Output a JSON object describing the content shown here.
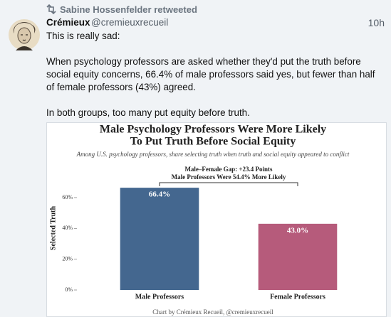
{
  "tweet": {
    "retweeted_by": "Sabine Hossenfelder retweeted",
    "author_name": "Crémieux",
    "author_handle": "@cremieuxrecueil",
    "time": "10h",
    "paragraphs": [
      [
        "This is really sad:"
      ],
      [
        "When psychology professors are asked whether they'd put the truth before",
        "social equity concerns, 66.4% of male professors said yes, but fewer than half",
        "of female professors (43%) agreed."
      ],
      [
        "In both groups, too many put equity before truth."
      ]
    ]
  },
  "chart_data": {
    "type": "bar",
    "title": [
      "Male Psychology Professors Were More Likely",
      "To Put Truth Before Social Equity"
    ],
    "subtitle": "Among U.S. psychology professors, share selecting truth when truth and social equity appeared to conflict",
    "annotations": [
      "Male–Female Gap: +23.4 Points",
      "Male Professors Were 54.4% More Likely"
    ],
    "y_label": "Selected Truth",
    "categories": [
      "Male Professors",
      "Female Professors"
    ],
    "values": [
      66.4,
      43.0
    ],
    "value_labels": [
      "66.4%",
      "43.0%"
    ],
    "colors": [
      "#44678f",
      "#b65b7b"
    ],
    "ylim": [
      0,
      75
    ],
    "yticks": [
      {
        "value": 0,
        "label": "0%"
      },
      {
        "value": 20,
        "label": "20%"
      },
      {
        "value": 40,
        "label": "40%"
      },
      {
        "value": 60,
        "label": "60%"
      }
    ],
    "grid": false,
    "source": "Chart by Crémieux Recueil, @cremieuxrecueil"
  }
}
